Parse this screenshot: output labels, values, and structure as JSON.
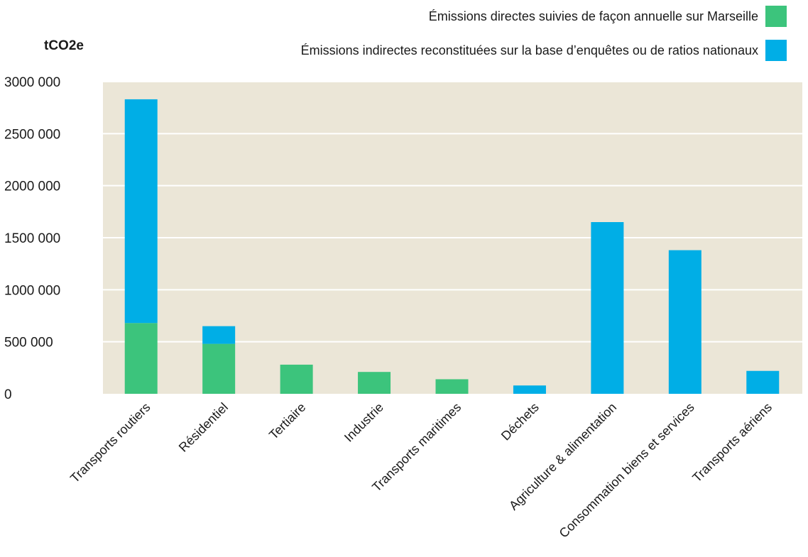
{
  "chart_data": {
    "type": "bar",
    "stacked": true,
    "ylabel": "tCO2e",
    "ylim": [
      0,
      3000000
    ],
    "yticks": [
      0,
      500000,
      1000000,
      1500000,
      2000000,
      2500000,
      3000000
    ],
    "ytick_labels": [
      "0",
      "500 000",
      "1000 000",
      "1500 000",
      "2000 000",
      "2500 000",
      "3000 000"
    ],
    "grid": true,
    "legend_position": "top-right",
    "categories": [
      "Transports routiers",
      "Résidentiel",
      "Tertiaire",
      "Industrie",
      "Transports maritimes",
      "Déchets",
      "Agriculture & alimentation",
      "Consommation biens et services",
      "Transports aériens"
    ],
    "series": [
      {
        "name": "Émissions directes suivies de façon annuelle sur Marseille",
        "color": "#3cc47c",
        "values": [
          680000,
          480000,
          280000,
          210000,
          140000,
          0,
          0,
          0,
          0
        ]
      },
      {
        "name": "Émissions indirectes reconstituées sur la base d’enquêtes ou de ratios nationaux",
        "color": "#00aee6",
        "values": [
          2150000,
          170000,
          0,
          0,
          0,
          80000,
          1650000,
          1380000,
          220000
        ]
      }
    ],
    "colors": {
      "plot_background": "#ebe6d7",
      "gridline": "#ffffff"
    }
  }
}
